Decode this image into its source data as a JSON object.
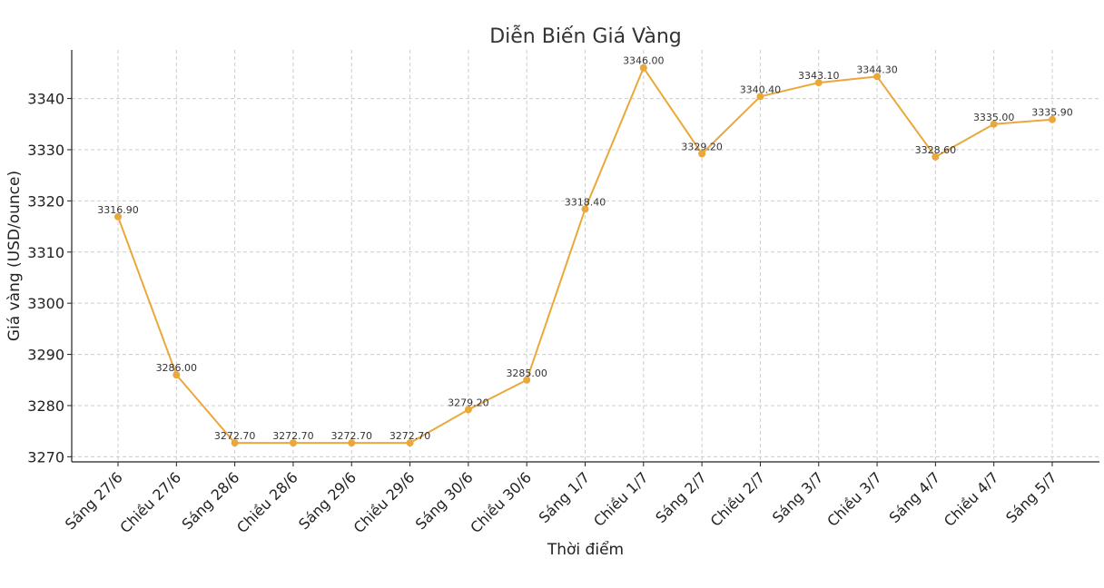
{
  "chart_data": {
    "type": "line",
    "title": "Diễn Biến Giá Vàng",
    "xlabel": "Thời điểm",
    "ylabel": "Giá vàng (USD/ounce)",
    "categories": [
      "Sáng 27/6",
      "Chiều 27/6",
      "Sáng 28/6",
      "Chiều 28/6",
      "Sáng 29/6",
      "Chiều 29/6",
      "Sáng 30/6",
      "Chiều 30/6",
      "Sáng 1/7",
      "Chiều 1/7",
      "Sáng 2/7",
      "Chiều 2/7",
      "Sáng 3/7",
      "Chiều 3/7",
      "Sáng 4/7",
      "Chiều 4/7",
      "Sáng 5/7"
    ],
    "series": [
      {
        "values": [
          3316.9,
          3286.0,
          3272.7,
          3272.7,
          3272.7,
          3272.7,
          3279.2,
          3285.0,
          3318.4,
          3346.0,
          3329.2,
          3340.4,
          3343.1,
          3344.3,
          3328.6,
          3335.0,
          3335.9
        ],
        "labels": [
          "3316.90",
          "3286.00",
          "3272.70",
          "3272.70",
          "3272.70",
          "3272.70",
          "3279.20",
          "3285.00",
          "3318.40",
          "3346.00",
          "3329.20",
          "3340.40",
          "3343.10",
          "3344.30",
          "3328.60",
          "3335.00",
          "3335.90"
        ],
        "color": "#EBA83A"
      }
    ],
    "yticks": [
      3270,
      3280,
      3290,
      3300,
      3310,
      3320,
      3330,
      3340
    ],
    "ylim": [
      3269.0,
      3349.5
    ],
    "grid": true,
    "marker": "circle"
  }
}
